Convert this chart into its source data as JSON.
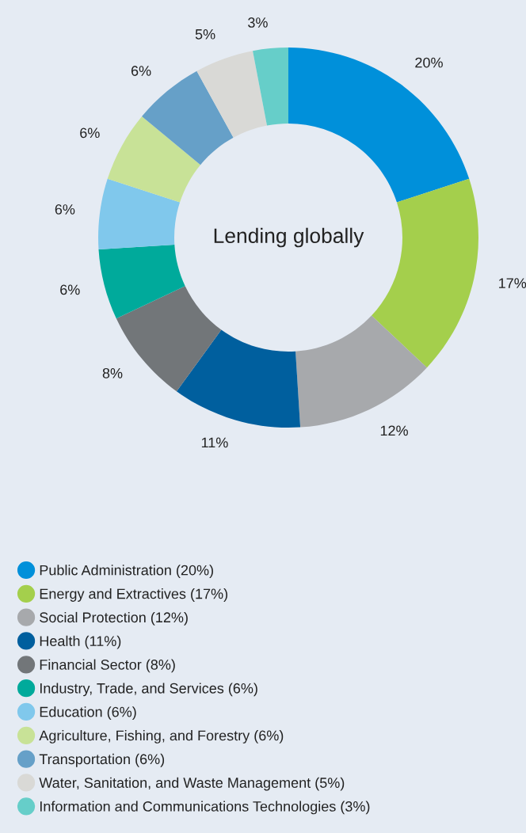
{
  "chart_data": {
    "type": "donut",
    "title": "Lending globally",
    "categories": [
      "Public Administration (20%)",
      "Energy and Extractives (17%)",
      "Social Protection (12%)",
      "Health (11%)",
      "Financial Sector (8%)",
      "Industry, Trade, and Services (6%)",
      "Education (6%)",
      "Agriculture, Fishing, and Forestry (6%)",
      "Transportation (6%)",
      "Water, Sanitation, and Waste Management (5%)",
      "Information and Communications Technologies (3%)"
    ],
    "values": [
      20,
      17,
      12,
      11,
      8,
      6,
      6,
      6,
      6,
      5,
      3
    ],
    "value_labels": [
      "20%",
      "17%",
      "12%",
      "11%",
      "8%",
      "6%",
      "6%",
      "6%",
      "6%",
      "5%",
      "3%"
    ],
    "colors": [
      "#0090da",
      "#a4cf4c",
      "#a7a9ac",
      "#005f9e",
      "#727679",
      "#00aa9b",
      "#80c8ec",
      "#c8e297",
      "#66a0c8",
      "#d9d9d6",
      "#66cec9"
    ],
    "legend": "bottom left"
  }
}
